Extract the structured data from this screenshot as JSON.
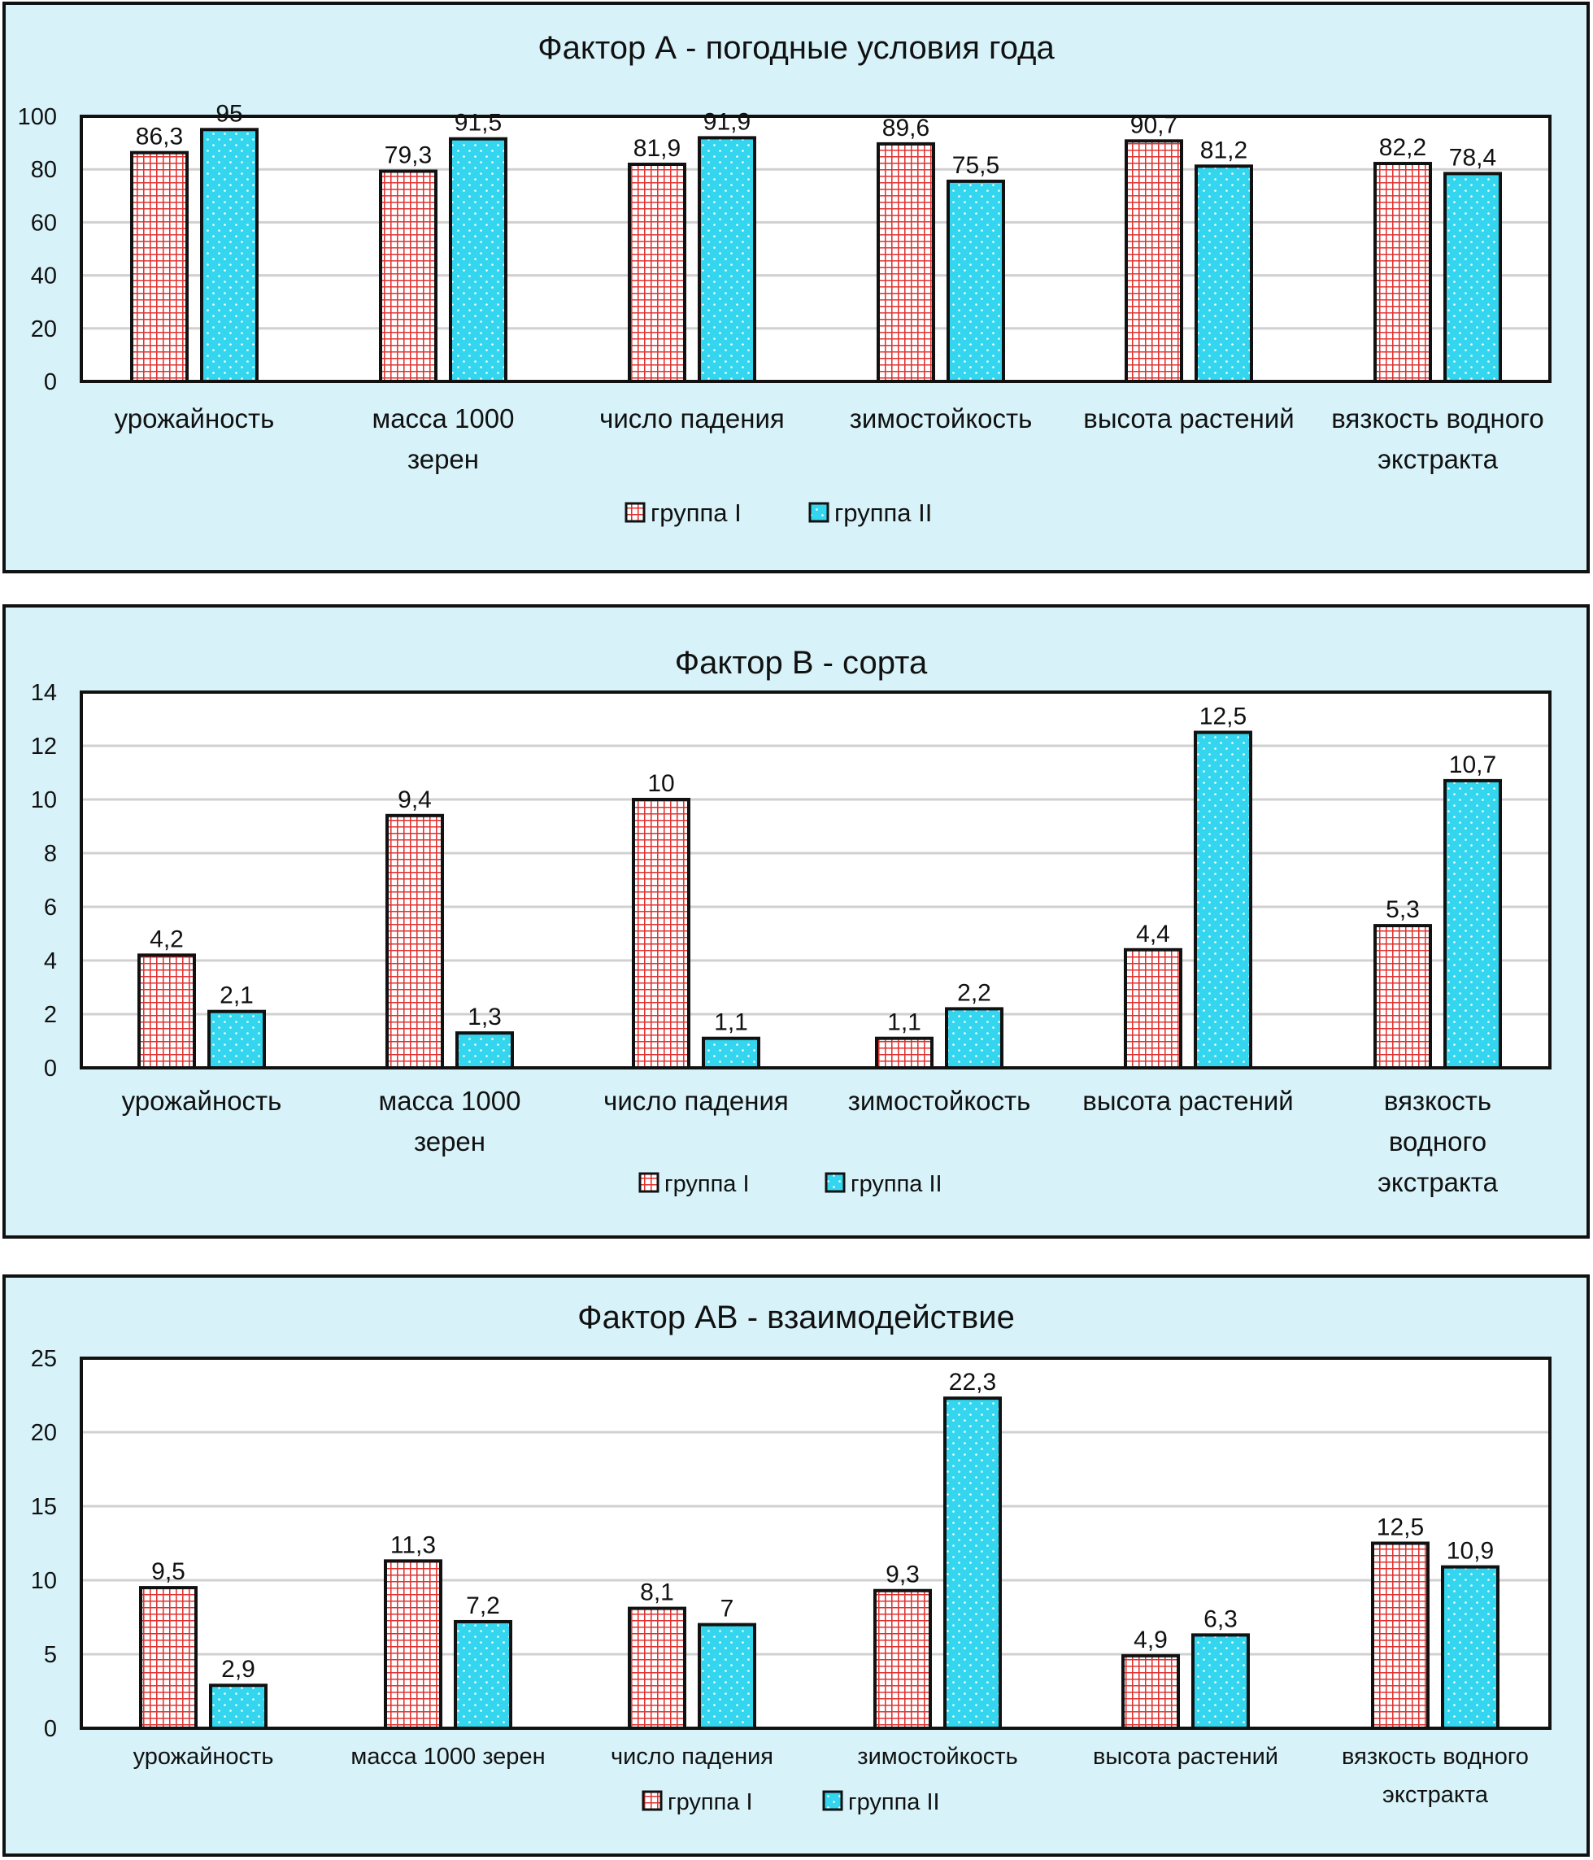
{
  "chart_data": [
    {
      "type": "bar",
      "title": "Фактор А - погодные условия года",
      "categories": [
        [
          "урожайность"
        ],
        [
          "масса 1000",
          "зерен"
        ],
        [
          "число падения"
        ],
        [
          "зимостойкость"
        ],
        [
          "высота растений"
        ],
        [
          "вязкость водного",
          "экстракта"
        ]
      ],
      "series": [
        {
          "name": "группа I",
          "values": [
            86.3,
            79.3,
            81.9,
            89.6,
            90.7,
            82.2
          ],
          "labels": [
            "86,3",
            "79,3",
            "81,9",
            "89,6",
            "90,7",
            "82,2"
          ]
        },
        {
          "name": "группа II",
          "values": [
            95,
            91.5,
            91.9,
            75.5,
            81.2,
            78.4
          ],
          "labels": [
            "95",
            "91,5",
            "91,9",
            "75,5",
            "81,2",
            "78,4"
          ]
        }
      ],
      "ylim": [
        0,
        100
      ],
      "yticks": [
        "0",
        "20",
        "40",
        "60",
        "80",
        "100"
      ],
      "grid": true,
      "legend": "bottom-center"
    },
    {
      "type": "bar",
      "title": "Фактор В - сорта",
      "categories": [
        [
          "урожайность"
        ],
        [
          "масса 1000",
          "зерен"
        ],
        [
          "число падения"
        ],
        [
          "зимостойкость"
        ],
        [
          "высота растений"
        ],
        [
          "вязкость",
          "водного",
          "экстракта"
        ]
      ],
      "series": [
        {
          "name": "группа I",
          "values": [
            4.2,
            9.4,
            10,
            1.1,
            4.4,
            5.3
          ],
          "labels": [
            "4,2",
            "9,4",
            "10",
            "1,1",
            "4,4",
            "5,3"
          ]
        },
        {
          "name": "группа II",
          "values": [
            2.1,
            1.3,
            1.1,
            2.2,
            12.5,
            10.7
          ],
          "labels": [
            "2,1",
            "1,3",
            "1,1",
            "2,2",
            "12,5",
            "10,7"
          ]
        }
      ],
      "ylim": [
        0,
        14
      ],
      "yticks": [
        "0",
        "2",
        "4",
        "6",
        "8",
        "10",
        "12",
        "14"
      ],
      "grid": true,
      "legend": "bottom-center"
    },
    {
      "type": "bar",
      "title": "Фактор АВ - взаимодействие",
      "categories": [
        [
          "урожайность"
        ],
        [
          "масса 1000 зерен"
        ],
        [
          "число падения"
        ],
        [
          "зимостойкость"
        ],
        [
          "высота растений"
        ],
        [
          "вязкость водного",
          "экстракта"
        ]
      ],
      "series": [
        {
          "name": "группа I",
          "values": [
            9.5,
            11.3,
            8.1,
            9.3,
            4.9,
            12.5
          ],
          "labels": [
            "9,5",
            "11,3",
            "8,1",
            "9,3",
            "4,9",
            "12,5"
          ]
        },
        {
          "name": "группа II",
          "values": [
            2.9,
            7.2,
            7,
            22.3,
            6.3,
            10.9
          ],
          "labels": [
            "2,9",
            "7,2",
            "7",
            "22,3",
            "6,3",
            "10,9"
          ]
        }
      ],
      "ylim": [
        0,
        25
      ],
      "yticks": [
        "0",
        "5",
        "10",
        "15",
        "20",
        "25"
      ],
      "grid": true,
      "legend": "bottom-center"
    }
  ],
  "colors": {
    "panel_background": "#d7f3f9",
    "group1_fill": "#ffffff",
    "group1_pattern": "#e0312f",
    "group2_fill": "#33d6ee",
    "group2_dots": "#ffffff",
    "grid": "#d0d0d0",
    "border": "#111111"
  }
}
